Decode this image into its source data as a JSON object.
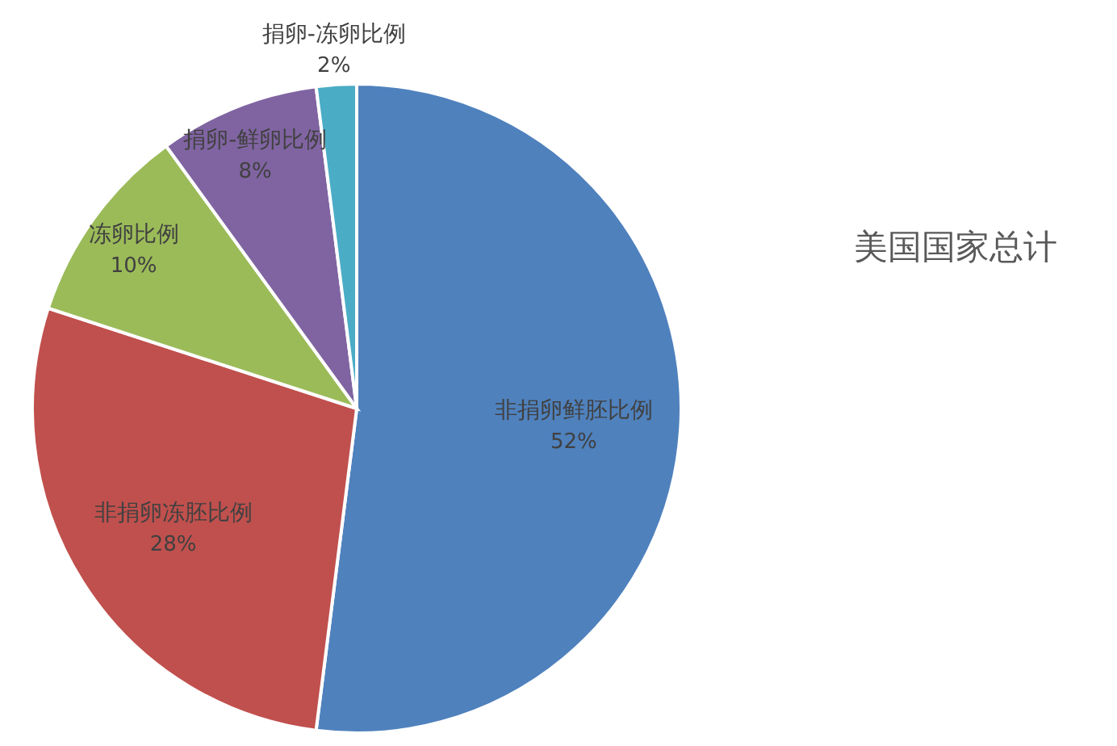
{
  "chart_data": {
    "type": "pie",
    "title": "美国国家总计",
    "categories": [
      "非捐卵鲜胚比例",
      "非捐卵冻胚比例",
      "冻卵比例",
      "捐卵-鲜卵比例",
      "捐卵-冻卵比例"
    ],
    "values": [
      52,
      28,
      10,
      8,
      2
    ],
    "colors": [
      "#4f81bd",
      "#c0504d",
      "#9bbb59",
      "#8064a2",
      "#4bacc6"
    ],
    "value_labels": [
      "52%",
      "28%",
      "10%",
      "8%",
      "2%"
    ]
  }
}
